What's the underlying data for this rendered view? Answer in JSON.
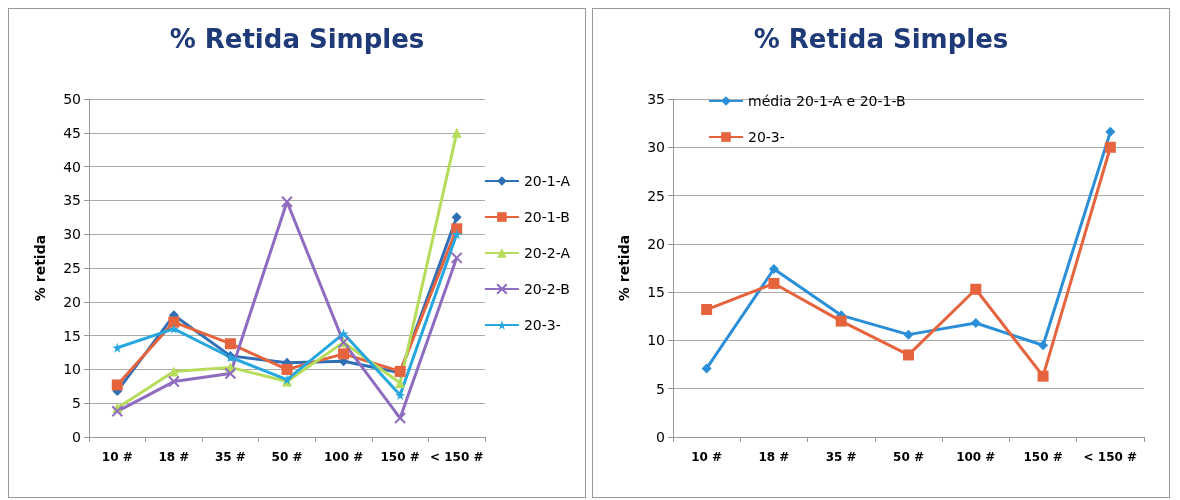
{
  "chart_data": [
    {
      "type": "line",
      "title": "% Retida Simples",
      "ylabel": "% retida",
      "categories": [
        "10 #",
        "18 #",
        "35 #",
        "50 #",
        "100 #",
        "150 #",
        "< 150 #"
      ],
      "ylim": [
        0,
        50
      ],
      "yticks": [
        0,
        5,
        10,
        15,
        20,
        25,
        30,
        35,
        40,
        45,
        50
      ],
      "grid": "y",
      "legend": "right",
      "series": [
        {
          "name": "20-1-A",
          "color": "#2f6fb5",
          "marker": "diamond",
          "values": [
            6.8,
            18,
            12,
            11,
            11.2,
            9.5,
            32.5
          ]
        },
        {
          "name": "20-1-B",
          "color": "#e5643e",
          "marker": "square",
          "values": [
            7.7,
            17,
            13.8,
            10,
            12.3,
            9.7,
            30.8
          ]
        },
        {
          "name": "20-2-A",
          "color": "#b5dc5a",
          "marker": "triangle",
          "values": [
            4.3,
            9.7,
            10.3,
            8.2,
            14,
            8,
            45
          ]
        },
        {
          "name": "20-2-B",
          "color": "#8e6cc0",
          "marker": "cross",
          "values": [
            3.8,
            8.2,
            9.4,
            34.8,
            14,
            2.8,
            26.5
          ]
        },
        {
          "name": "20-3-",
          "color": "#27a7e0",
          "marker": "star",
          "values": [
            13.2,
            16,
            11.8,
            8.5,
            15.3,
            6.2,
            30
          ]
        }
      ]
    },
    {
      "type": "line",
      "title": "% Retida Simples",
      "ylabel": "% retida",
      "categories": [
        "10 #",
        "18 #",
        "35 #",
        "50 #",
        "100 #",
        "150 #",
        "< 150 #"
      ],
      "ylim": [
        0,
        35
      ],
      "yticks": [
        0,
        5,
        10,
        15,
        20,
        25,
        30,
        35
      ],
      "grid": "y",
      "legend": "top left",
      "series": [
        {
          "name": "média 20-1-A e 20-1-B",
          "color": "#2b8ed8",
          "marker": "diamond",
          "values": [
            7.1,
            17.4,
            12.6,
            10.6,
            11.8,
            9.5,
            31.6
          ]
        },
        {
          "name": "20-3-",
          "color": "#e5643e",
          "marker": "square",
          "values": [
            13.2,
            15.9,
            12,
            8.5,
            15.3,
            6.3,
            30
          ]
        }
      ]
    }
  ]
}
